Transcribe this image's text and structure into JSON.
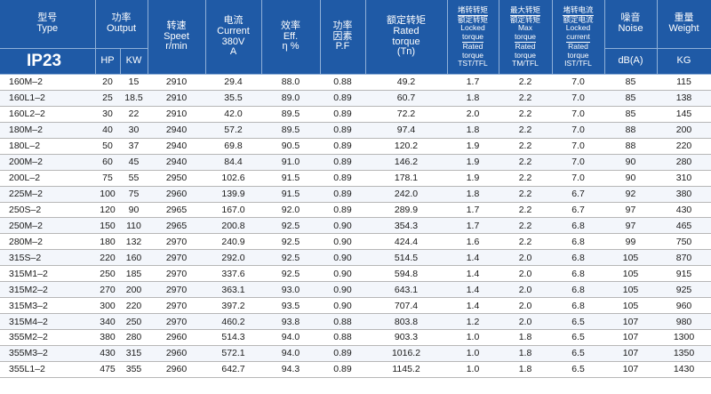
{
  "headers": {
    "type": {
      "cn": "型号",
      "en": "Type"
    },
    "output": {
      "cn": "功率",
      "en": "Output",
      "hp": "HP",
      "kw": "KW"
    },
    "speed": {
      "cn": "转速",
      "en1": "Speet",
      "en2": "r/min"
    },
    "current": {
      "cn": "电流",
      "en1": "Current",
      "en2": "380V",
      "en3": "A"
    },
    "eff": {
      "cn": "效率",
      "en1": "Eff.",
      "en2": "η %"
    },
    "pf": {
      "cn1": "功率",
      "cn2": "因素",
      "en": "P.F"
    },
    "torque": {
      "cn": "额定转矩",
      "en1": "Rated",
      "en2": "torque",
      "en3": "(Tn)"
    },
    "locked_torque": {
      "cn1": "堵转转矩",
      "cn2": "额定转矩",
      "en1": "Locked",
      "en2": "torque",
      "en3": "Rated",
      "en4": "torque",
      "en5": "TST/TFL"
    },
    "max_torque": {
      "cn1": "最大转矩",
      "cn2": "额定转矩",
      "en1": "Max",
      "en2": "torque",
      "en3": "Rated",
      "en4": "torque",
      "en5": "TM/TFL"
    },
    "locked_current": {
      "cn1": "堵转电流",
      "cn2": "额定电流",
      "en1": "Locked",
      "en2": "current",
      "en3": "Rated",
      "en4": "torque",
      "en5": "IST/TFL"
    },
    "noise": {
      "cn": "噪音",
      "en": "Noise",
      "unit": "dB(A)"
    },
    "weight": {
      "cn": "重量",
      "en": "Weight",
      "unit": "KG"
    },
    "ip": "IP23"
  },
  "rows": [
    [
      "160M–2",
      "20",
      "15",
      "2910",
      "29.4",
      "88.0",
      "0.88",
      "49.2",
      "1.7",
      "2.2",
      "7.0",
      "85",
      "115"
    ],
    [
      "160L1–2",
      "25",
      "18.5",
      "2910",
      "35.5",
      "89.0",
      "0.89",
      "60.7",
      "1.8",
      "2.2",
      "7.0",
      "85",
      "138"
    ],
    [
      "160L2–2",
      "30",
      "22",
      "2910",
      "42.0",
      "89.5",
      "0.89",
      "72.2",
      "2.0",
      "2.2",
      "7.0",
      "85",
      "145"
    ],
    [
      "180M–2",
      "40",
      "30",
      "2940",
      "57.2",
      "89.5",
      "0.89",
      "97.4",
      "1.8",
      "2.2",
      "7.0",
      "88",
      "200"
    ],
    [
      "180L–2",
      "50",
      "37",
      "2940",
      "69.8",
      "90.5",
      "0.89",
      "120.2",
      "1.9",
      "2.2",
      "7.0",
      "88",
      "220"
    ],
    [
      "200M–2",
      "60",
      "45",
      "2940",
      "84.4",
      "91.0",
      "0.89",
      "146.2",
      "1.9",
      "2.2",
      "7.0",
      "90",
      "280"
    ],
    [
      "200L–2",
      "75",
      "55",
      "2950",
      "102.6",
      "91.5",
      "0.89",
      "178.1",
      "1.9",
      "2.2",
      "7.0",
      "90",
      "310"
    ],
    [
      "225M–2",
      "100",
      "75",
      "2960",
      "139.9",
      "91.5",
      "0.89",
      "242.0",
      "1.8",
      "2.2",
      "6.7",
      "92",
      "380"
    ],
    [
      "250S–2",
      "120",
      "90",
      "2965",
      "167.0",
      "92.0",
      "0.89",
      "289.9",
      "1.7",
      "2.2",
      "6.7",
      "97",
      "430"
    ],
    [
      "250M–2",
      "150",
      "110",
      "2965",
      "200.8",
      "92.5",
      "0.90",
      "354.3",
      "1.7",
      "2.2",
      "6.8",
      "97",
      "465"
    ],
    [
      "280M–2",
      "180",
      "132",
      "2970",
      "240.9",
      "92.5",
      "0.90",
      "424.4",
      "1.6",
      "2.2",
      "6.8",
      "99",
      "750"
    ],
    [
      "315S–2",
      "220",
      "160",
      "2970",
      "292.0",
      "92.5",
      "0.90",
      "514.5",
      "1.4",
      "2.0",
      "6.8",
      "105",
      "870"
    ],
    [
      "315M1–2",
      "250",
      "185",
      "2970",
      "337.6",
      "92.5",
      "0.90",
      "594.8",
      "1.4",
      "2.0",
      "6.8",
      "105",
      "915"
    ],
    [
      "315M2–2",
      "270",
      "200",
      "2970",
      "363.1",
      "93.0",
      "0.90",
      "643.1",
      "1.4",
      "2.0",
      "6.8",
      "105",
      "925"
    ],
    [
      "315M3–2",
      "300",
      "220",
      "2970",
      "397.2",
      "93.5",
      "0.90",
      "707.4",
      "1.4",
      "2.0",
      "6.8",
      "105",
      "960"
    ],
    [
      "315M4–2",
      "340",
      "250",
      "2970",
      "460.2",
      "93.8",
      "0.88",
      "803.8",
      "1.2",
      "2.0",
      "6.5",
      "107",
      "980"
    ],
    [
      "355M2–2",
      "380",
      "280",
      "2960",
      "514.3",
      "94.0",
      "0.88",
      "903.3",
      "1.0",
      "1.8",
      "6.5",
      "107",
      "1300"
    ],
    [
      "355M3–2",
      "430",
      "315",
      "2960",
      "572.1",
      "94.0",
      "0.89",
      "1016.2",
      "1.0",
      "1.8",
      "6.5",
      "107",
      "1350"
    ],
    [
      "355L1–2",
      "475",
      "355",
      "2960",
      "642.7",
      "94.3",
      "0.89",
      "1145.2",
      "1.0",
      "1.8",
      "6.5",
      "107",
      "1430"
    ]
  ]
}
